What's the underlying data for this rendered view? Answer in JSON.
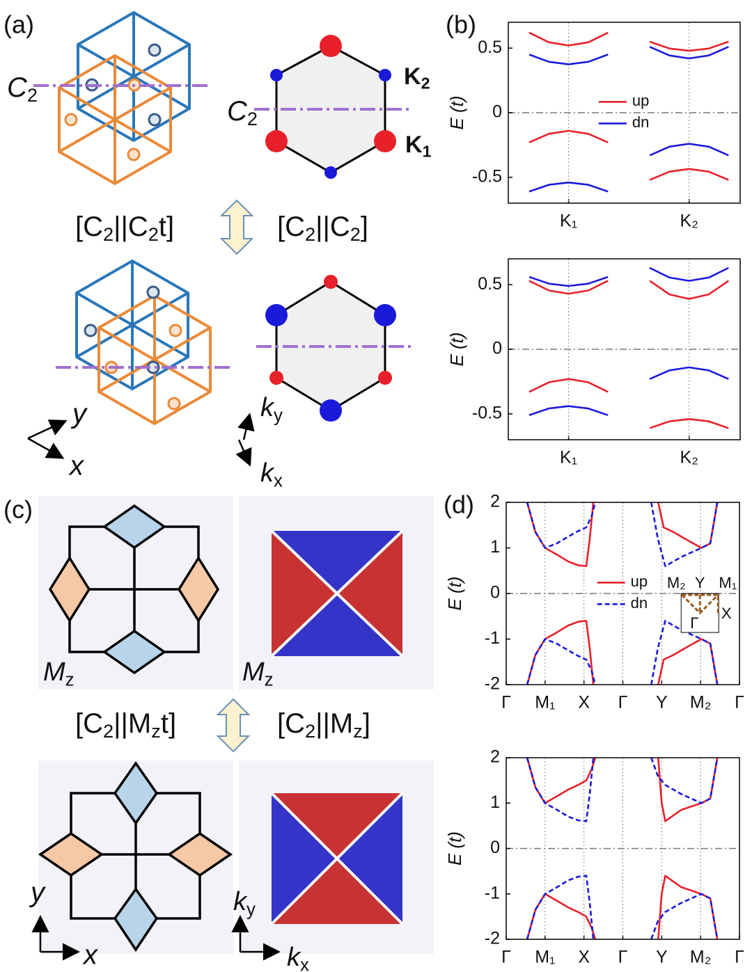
{
  "panel_a": {
    "label": "(a)",
    "c2_left": [
      "C",
      "2"
    ],
    "c2_right": [
      "C",
      "2"
    ],
    "k1": [
      "K",
      "1"
    ],
    "k2": [
      "K",
      "2"
    ],
    "op_left": [
      "[C",
      "2",
      "||C",
      "2",
      "t]"
    ],
    "op_right": [
      "[C",
      "2",
      "||C",
      "2",
      "]"
    ],
    "x": "x",
    "y": "y",
    "kx": [
      "k",
      "x"
    ],
    "ky": [
      "k",
      "y"
    ]
  },
  "panel_c": {
    "label": "(c)",
    "mz_left": [
      "M",
      "z"
    ],
    "mz_right": [
      "M",
      "z"
    ],
    "op_left": [
      "[C",
      "2",
      "||M",
      "z",
      "t]"
    ],
    "op_right": [
      "[C",
      "2",
      "||M",
      "z",
      "]"
    ],
    "x": "x",
    "y": "y",
    "kx": [
      "k",
      "x"
    ],
    "ky": [
      "k",
      "y"
    ]
  },
  "chart_data": [
    {
      "type": "line",
      "panel_label": "(b)",
      "ylabel": "E (t)",
      "xlim": [
        0,
        1
      ],
      "ylim": [
        -0.7,
        0.7
      ],
      "xticks": [
        {
          "value": 0.26,
          "label": "K₁"
        },
        {
          "value": 0.78,
          "label": "K₂"
        }
      ],
      "yticks": [
        -0.5,
        0,
        0.5
      ],
      "xgrid": true,
      "zero_line": true,
      "legend": "center",
      "series": [
        {
          "name": "up",
          "color": "#e8202a",
          "x": [
            0.09,
            0.175,
            0.26,
            0.345,
            0.43,
            null,
            0.61,
            0.695,
            0.78,
            0.865,
            0.95,
            null,
            0.09,
            0.175,
            0.26,
            0.345,
            0.43,
            null,
            0.61,
            0.695,
            0.78,
            0.865,
            0.95
          ],
          "values": [
            0.62,
            0.545,
            0.52,
            0.545,
            0.62,
            null,
            0.55,
            0.497,
            0.48,
            0.497,
            0.55,
            null,
            -0.23,
            -0.163,
            -0.14,
            -0.163,
            -0.23,
            null,
            -0.52,
            -0.456,
            -0.435,
            -0.456,
            -0.52
          ]
        },
        {
          "name": "dn",
          "color": "#1a1adb",
          "x": [
            0.09,
            0.175,
            0.26,
            0.345,
            0.43,
            null,
            0.61,
            0.695,
            0.78,
            0.865,
            0.95,
            null,
            0.09,
            0.175,
            0.26,
            0.345,
            0.43,
            null,
            0.61,
            0.695,
            0.78,
            0.865,
            0.95
          ],
          "values": [
            0.45,
            0.394,
            0.375,
            0.394,
            0.45,
            null,
            0.51,
            0.443,
            0.42,
            0.443,
            0.51,
            null,
            -0.61,
            -0.558,
            -0.54,
            -0.558,
            -0.61,
            null,
            -0.33,
            -0.263,
            -0.24,
            -0.263,
            -0.33
          ]
        }
      ]
    },
    {
      "type": "line",
      "ylabel": "E (t)",
      "xlim": [
        0,
        1
      ],
      "ylim": [
        -0.7,
        0.7
      ],
      "xticks": [
        {
          "value": 0.26,
          "label": "K₁"
        },
        {
          "value": 0.78,
          "label": "K₂"
        }
      ],
      "yticks": [
        -0.5,
        0,
        0.5
      ],
      "xgrid": true,
      "zero_line": true,
      "series": [
        {
          "color": "#e8202a",
          "x": [
            0.09,
            0.175,
            0.26,
            0.345,
            0.43,
            null,
            0.61,
            0.695,
            0.78,
            0.865,
            0.95,
            null,
            0.09,
            0.175,
            0.26,
            0.345,
            0.43,
            null,
            0.61,
            0.695,
            0.78,
            0.865,
            0.95
          ],
          "values": [
            0.53,
            0.455,
            0.43,
            0.455,
            0.53,
            null,
            0.53,
            0.425,
            0.39,
            0.425,
            0.53,
            null,
            -0.33,
            -0.255,
            -0.23,
            -0.255,
            -0.33,
            null,
            -0.61,
            -0.558,
            -0.54,
            -0.558,
            -0.61
          ]
        },
        {
          "color": "#1a1adb",
          "x": [
            0.09,
            0.175,
            0.26,
            0.345,
            0.43,
            null,
            0.61,
            0.695,
            0.78,
            0.865,
            0.95,
            null,
            0.09,
            0.175,
            0.26,
            0.345,
            0.43,
            null,
            0.61,
            0.695,
            0.78,
            0.865,
            0.95
          ],
          "values": [
            0.56,
            0.508,
            0.49,
            0.508,
            0.56,
            null,
            0.63,
            0.555,
            0.53,
            0.555,
            0.63,
            null,
            -0.51,
            -0.458,
            -0.44,
            -0.458,
            -0.51,
            null,
            -0.23,
            -0.163,
            -0.14,
            -0.163,
            -0.23
          ]
        }
      ]
    },
    {
      "type": "line",
      "panel_label": "(d)",
      "ylabel": "E (t)",
      "xlim": [
        0,
        6
      ],
      "ylim": [
        -2,
        2
      ],
      "xticks": [
        {
          "value": 0,
          "label": "Γ"
        },
        {
          "value": 1,
          "label": "M₁"
        },
        {
          "value": 2,
          "label": "X"
        },
        {
          "value": 3,
          "label": "Γ"
        },
        {
          "value": 4,
          "label": "Y"
        },
        {
          "value": 5,
          "label": "M₂"
        },
        {
          "value": 6,
          "label": "Γ"
        }
      ],
      "yticks": [
        -2,
        -1,
        0,
        1,
        2
      ],
      "xgrid": true,
      "zero_line": true,
      "legend": "center",
      "inset_labels": [
        "M₂",
        "Y",
        "M₁",
        "X",
        "Γ"
      ],
      "series": [
        {
          "name": "up",
          "color": "#e8202a",
          "dashed": false,
          "x": [
            0.54,
            0.75,
            1.0,
            1.31,
            1.6,
            1.85,
            2.06,
            2.15,
            2.24,
            null,
            3.91,
            4.05,
            4.3,
            4.6,
            5.02,
            5.25,
            5.43,
            null,
            0.54,
            0.75,
            1.0,
            1.31,
            1.6,
            1.85,
            2.06,
            2.15,
            2.24,
            null,
            3.91,
            4.05,
            4.3,
            4.6,
            5.02,
            5.25,
            5.43
          ],
          "values": [
            2,
            1.35,
            1.0,
            0.85,
            0.7,
            0.62,
            0.6,
            1.2,
            2,
            null,
            2,
            1.45,
            1.35,
            1.2,
            1.0,
            1.1,
            2,
            null,
            -2,
            -1.35,
            -1.0,
            -0.85,
            -0.7,
            -0.62,
            -0.6,
            -1.2,
            -2,
            null,
            -2,
            -1.45,
            -1.35,
            -1.2,
            -1.0,
            -1.1,
            -2
          ]
        },
        {
          "name": "dn",
          "color": "#1a1adb",
          "dashed": true,
          "x": [
            0.54,
            0.75,
            1.0,
            1.3,
            1.6,
            1.85,
            2.06,
            2.2,
            2.29,
            null,
            3.73,
            3.9,
            4.09,
            4.5,
            5.02,
            5.25,
            5.43,
            null,
            0.54,
            0.75,
            1.0,
            1.3,
            1.6,
            1.85,
            2.06,
            2.2,
            2.29,
            null,
            3.73,
            3.9,
            4.09,
            4.5,
            5.02,
            5.25,
            5.43
          ],
          "values": [
            2,
            1.35,
            1.0,
            1.1,
            1.25,
            1.37,
            1.45,
            1.7,
            2,
            null,
            2,
            1.2,
            0.6,
            0.8,
            1.0,
            1.1,
            2,
            null,
            -2,
            -1.35,
            -1.0,
            -1.1,
            -1.25,
            -1.37,
            -1.45,
            -1.7,
            -2,
            null,
            -2,
            -1.2,
            -0.6,
            -0.8,
            -1.0,
            -1.1,
            -2
          ]
        }
      ]
    },
    {
      "type": "line",
      "ylabel": "E (t)",
      "xlim": [
        0,
        6
      ],
      "ylim": [
        -2,
        2
      ],
      "xticks": [
        {
          "value": 0,
          "label": "Γ"
        },
        {
          "value": 1,
          "label": "M₁"
        },
        {
          "value": 2,
          "label": "X"
        },
        {
          "value": 3,
          "label": "Γ"
        },
        {
          "value": 4,
          "label": "Y"
        },
        {
          "value": 5,
          "label": "M₂"
        },
        {
          "value": 6,
          "label": "Γ"
        }
      ],
      "yticks": [
        -2,
        -1,
        0,
        1,
        2
      ],
      "xgrid": true,
      "zero_line": true,
      "series": [
        {
          "color": "#e8202a",
          "dashed": false,
          "x": [
            0.54,
            0.75,
            1.0,
            1.3,
            1.6,
            1.85,
            2.06,
            2.2,
            2.29,
            null,
            3.91,
            4.0,
            4.09,
            4.5,
            5.02,
            5.25,
            5.43,
            null,
            0.54,
            0.75,
            1.0,
            1.3,
            1.6,
            1.85,
            2.06,
            2.2,
            2.29,
            null,
            3.91,
            4.0,
            4.09,
            4.5,
            5.02,
            5.25,
            5.43
          ],
          "values": [
            2,
            1.35,
            1.0,
            1.15,
            1.3,
            1.4,
            1.5,
            1.75,
            2,
            null,
            2,
            1.0,
            0.6,
            0.85,
            1.0,
            1.1,
            2,
            null,
            -2,
            -1.35,
            -1.0,
            -1.15,
            -1.3,
            -1.4,
            -1.5,
            -1.75,
            -2,
            null,
            -2,
            -1.0,
            -0.6,
            -0.85,
            -1.0,
            -1.1,
            -2
          ]
        },
        {
          "color": "#1a1adb",
          "dashed": true,
          "x": [
            0.54,
            0.75,
            1.0,
            1.31,
            1.6,
            1.85,
            2.06,
            2.15,
            2.24,
            null,
            3.73,
            3.9,
            4.09,
            4.5,
            5.02,
            5.25,
            5.43,
            null,
            0.54,
            0.75,
            1.0,
            1.31,
            1.6,
            1.85,
            2.06,
            2.15,
            2.24,
            null,
            3.73,
            3.9,
            4.09,
            4.5,
            5.02,
            5.25,
            5.43
          ],
          "values": [
            2,
            1.35,
            1.0,
            0.85,
            0.7,
            0.62,
            0.6,
            1.2,
            2,
            null,
            2,
            1.6,
            1.4,
            1.2,
            1.0,
            1.1,
            2,
            null,
            -2,
            -1.35,
            -1.0,
            -0.85,
            -0.7,
            -0.62,
            -0.6,
            -1.2,
            -2,
            null,
            -2,
            -1.6,
            -1.4,
            -1.2,
            -1.0,
            -1.1,
            -2
          ]
        }
      ]
    }
  ]
}
